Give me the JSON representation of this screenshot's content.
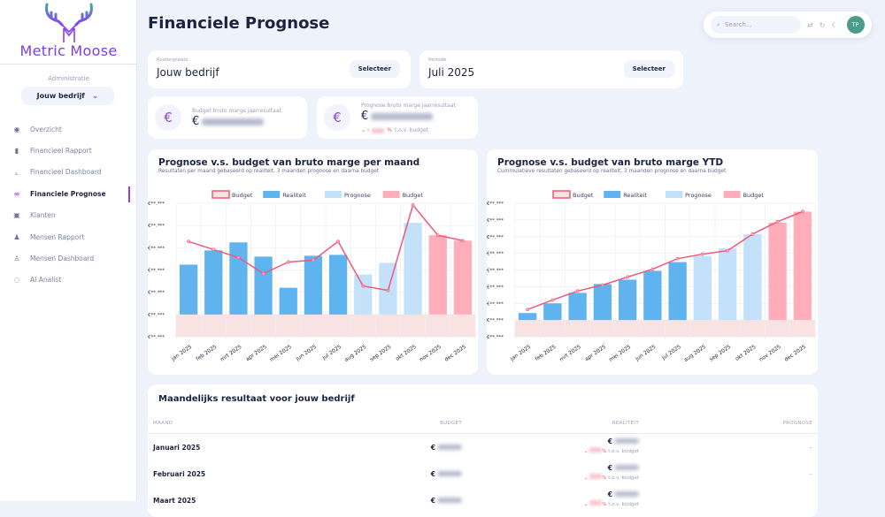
{
  "brand": {
    "name": "Metric Moose"
  },
  "sidebar": {
    "admin_label": "Administratie",
    "company": "Jouw bedrijf",
    "items": [
      {
        "label": "Overzicht",
        "icon": "eye-icon"
      },
      {
        "label": "Financieel Rapport",
        "icon": "bar-chart-icon"
      },
      {
        "label": "Financieel Dashboard",
        "icon": "line-chart-icon"
      },
      {
        "label": "Financiele Prognose",
        "icon": "binoculars-icon",
        "active": true
      },
      {
        "label": "Klanten",
        "icon": "inbox-icon"
      },
      {
        "label": "Mensen Rapport",
        "icon": "users-icon"
      },
      {
        "label": "Mensen Dashboard",
        "icon": "people-icon"
      },
      {
        "label": "AI Analist",
        "icon": "chat-icon"
      }
    ]
  },
  "header": {
    "title": "Financiele Prognose",
    "search_placeholder": "Search...",
    "avatar": "TP"
  },
  "filters": {
    "cost_label": "Kostenplaats",
    "cost_value": "Jouw bedrijf",
    "period_label": "Periode",
    "period_value": "Juli 2025",
    "select_label": "Selecteer"
  },
  "kpis": {
    "budget_label": "Budget bruto marge jaarresultaat",
    "forecast_label": "Prognose bruto marge jaarresultaat",
    "currency": "€",
    "pct": "%",
    "vs_budget": "t.o.v. budget"
  },
  "colors": {
    "accent": "#8a3ff0",
    "realiteit": "#5fb3ee",
    "prognose": "#c3e1f8",
    "budget_bar": "#ffacbb",
    "budget_line": "#f0587a",
    "budget_area": "#f8e2e2"
  },
  "chart_data": [
    {
      "type": "bar",
      "title": "Prognose v.s. budget van bruto marge per maand",
      "subtitle": "Resultaten per maand gebaseerd op realiteit, 3 maanden prognose en daarna budget",
      "categories": [
        "jan 2025",
        "feb 2025",
        "mrt 2025",
        "apr 2025",
        "mei 2025",
        "jun 2025",
        "jul 2025",
        "aug 2025",
        "sep 2025",
        "okt 2025",
        "nov 2025",
        "dec 2025"
      ],
      "legend": [
        "Budget",
        "Realiteit",
        "Prognose",
        "Budget"
      ],
      "legend_position": "top",
      "ytick_labels": [
        "€**.***",
        "€**.***",
        "€**.***",
        "€**.***",
        "€**.***",
        "€**.***",
        "€**.***"
      ],
      "ylim": [
        -1,
        5
      ],
      "grid": true,
      "bar_kinds": [
        "Realiteit",
        "Realiteit",
        "Realiteit",
        "Realiteit",
        "Realiteit",
        "Realiteit",
        "Realiteit",
        "Prognose",
        "Prognose",
        "Prognose",
        "Budget",
        "Budget"
      ],
      "bars": [
        2.24,
        2.88,
        3.24,
        2.6,
        1.2,
        2.64,
        2.68,
        1.8,
        2.32,
        4.12,
        3.56,
        3.32
      ],
      "budget_line": [
        3.28,
        2.92,
        2.56,
        1.84,
        2.36,
        2.44,
        3.28,
        1.28,
        1.08,
        4.92,
        3.56,
        3.32
      ]
    },
    {
      "type": "bar",
      "title": "Prognose v.s. budget van bruto marge YTD",
      "subtitle": "Cummulatieve resultaten gebaseerd op realiteit, 3 maanden prognose en daarna budget",
      "categories": [
        "jan 2025",
        "feb 2025",
        "mrt 2025",
        "apr 2025",
        "mei 2025",
        "jun 2025",
        "jul 2025",
        "aug 2025",
        "sep 2025",
        "okt 2025",
        "nov 2025",
        "dec 2025"
      ],
      "legend": [
        "Budget",
        "Realiteit",
        "Prognose",
        "Budget"
      ],
      "legend_position": "top",
      "ytick_labels": [
        "€**.***",
        "€**.***",
        "€**.***",
        "€**.***",
        "€**.***",
        "€**.***",
        "€**.***",
        "€**.***",
        "€**.***"
      ],
      "ylim": [
        -1,
        7
      ],
      "grid": true,
      "bar_kinds": [
        "Realiteit",
        "Realiteit",
        "Realiteit",
        "Realiteit",
        "Realiteit",
        "Realiteit",
        "Realiteit",
        "Prognose",
        "Prognose",
        "Prognose",
        "Budget",
        "Budget"
      ],
      "bars": [
        0.42,
        1.0,
        1.63,
        2.16,
        2.42,
        2.95,
        3.47,
        3.84,
        4.3,
        5.15,
        5.84,
        6.5
      ],
      "budget_line": [
        0.63,
        1.2,
        1.74,
        2.1,
        2.58,
        3.05,
        3.68,
        3.95,
        4.16,
        5.15,
        5.9,
        6.5
      ]
    }
  ],
  "table": {
    "title": "Maandelijks resultaat voor jouw bedrijf",
    "columns": [
      "MAAND",
      "BUDGET",
      "REALITEIT",
      "PROGNOSE"
    ],
    "rows": [
      {
        "month": "Januari 2025",
        "prognose": "–"
      },
      {
        "month": "Februari 2025",
        "prognose": "–"
      },
      {
        "month": "Maart 2025",
        "prognose": ""
      }
    ]
  }
}
